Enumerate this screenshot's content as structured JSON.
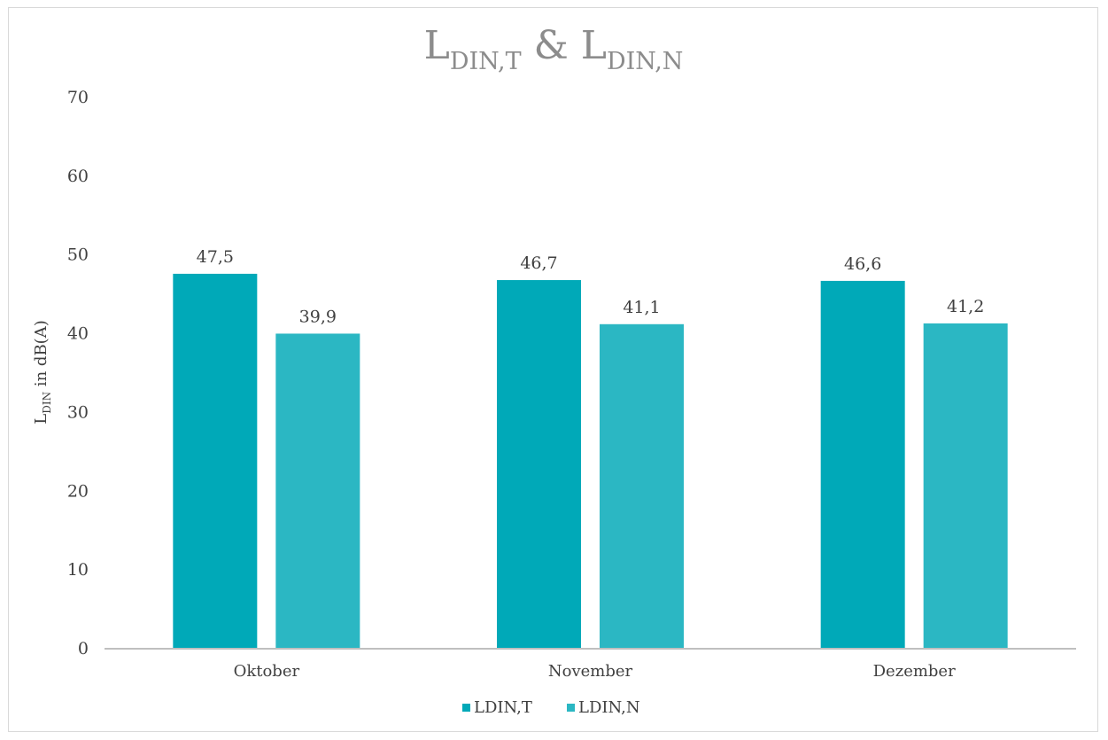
{
  "chart_data": {
    "type": "bar",
    "title": {
      "main1": "L",
      "sub1": "DIN,T",
      "amp": " & ",
      "main2": "L",
      "sub2": "DIN,N"
    },
    "ylabel": {
      "main": "L",
      "sub": "DIN",
      "rest": " in dB(A)"
    },
    "xlabel": "",
    "ylim": [
      0,
      70
    ],
    "yticks": [
      "0",
      "10",
      "20",
      "30",
      "40",
      "50",
      "60",
      "70"
    ],
    "categories": [
      "Oktober",
      "November",
      "Dezember"
    ],
    "series": [
      {
        "name": "LDIN,T",
        "color": "#00a9b8",
        "values": [
          47.5,
          46.7,
          46.6
        ],
        "labels": [
          "47,5",
          "46,7",
          "46,6"
        ]
      },
      {
        "name": "LDIN,N",
        "color": "#2bb7c3",
        "values": [
          39.9,
          41.1,
          41.2
        ],
        "labels": [
          "39,9",
          "41,1",
          "41,2"
        ]
      }
    ],
    "grid": false,
    "legend": "bottom"
  }
}
